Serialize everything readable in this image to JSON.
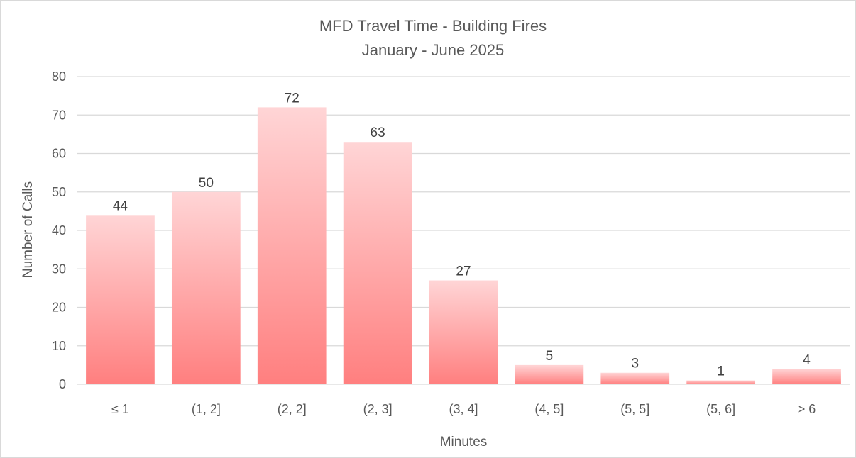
{
  "chart_data": {
    "type": "bar",
    "title": "MFD Travel Time - Building Fires",
    "subtitle": "January - June 2025",
    "xlabel": "Minutes",
    "ylabel": "Number of Calls",
    "categories": [
      "≤ 1",
      "(1, 2]",
      "(2, 2]",
      "(2, 3]",
      "(3, 4]",
      "(4, 5]",
      "(5, 5]",
      "(5, 6]",
      "> 6"
    ],
    "values": [
      44,
      50,
      72,
      63,
      27,
      5,
      3,
      1,
      4
    ],
    "ylim": [
      0,
      80
    ],
    "yticks": [
      0,
      10,
      20,
      30,
      40,
      50,
      60,
      70,
      80
    ],
    "grid": true,
    "legend": "none",
    "data_labels": true,
    "colors": {
      "bar_top": "#ffd5d6",
      "bar_bottom": "#ff7f7f",
      "grid": "#d9d9d9",
      "text": "#595959"
    }
  }
}
